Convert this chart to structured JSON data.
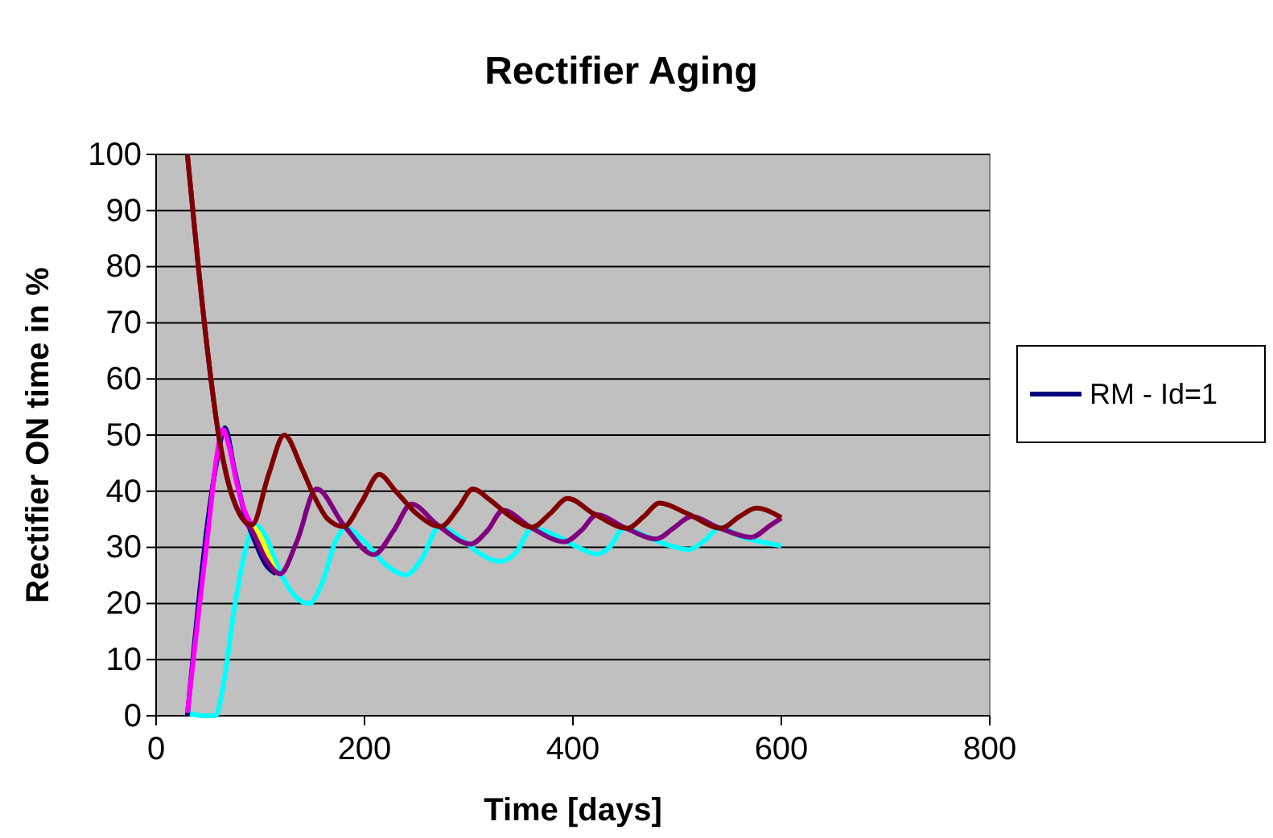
{
  "chart_data": {
    "type": "line",
    "title": "Rectifier Aging",
    "xlabel": "Time [days]",
    "ylabel": "Rectifier ON time in %",
    "xlim": [
      0,
      800
    ],
    "xticks": [
      0,
      200,
      400,
      600,
      800
    ],
    "ylim": [
      0,
      100
    ],
    "yticks": [
      0,
      10,
      20,
      30,
      40,
      50,
      60,
      70,
      80,
      90,
      100
    ],
    "grid": "y",
    "legend": "right",
    "line_style": "solid",
    "marker": "none",
    "series": [
      {
        "color": "#00ffff",
        "x": [
          30,
          45,
          57,
          65,
          75,
          85,
          95,
          105,
          118,
          135,
          147,
          160,
          172,
          182,
          200,
          220,
          240,
          255,
          272,
          290,
          310,
          330,
          345,
          361,
          385,
          405,
          423,
          435,
          449,
          470,
          490,
          511,
          525,
          542,
          560,
          580,
          600
        ],
        "values": [
          0.5,
          0,
          0,
          6,
          19,
          29,
          34,
          32,
          26,
          21,
          20,
          24,
          31,
          33.5,
          31,
          27,
          25.1,
          28,
          33.7,
          32,
          29,
          27.5,
          29,
          33.4,
          32,
          30,
          28.8,
          30,
          33.4,
          32,
          30.5,
          29.6,
          31,
          33.6,
          32,
          31,
          30.3
        ]
      },
      {
        "color": "#ffff00",
        "x": [
          92,
          100,
          108,
          114
        ],
        "values": [
          34,
          32,
          28.5,
          26
        ]
      },
      {
        "name": "RM - Id=1",
        "color": "#000080",
        "x": [
          30,
          58,
          66,
          75,
          85,
          95,
          105,
          115
        ],
        "values": [
          0,
          45,
          51.3,
          44,
          36,
          31,
          27,
          25.3
        ]
      },
      {
        "color": "#ff00ff",
        "x": [
          30,
          40,
          50,
          58,
          64,
          70,
          78,
          86,
          92
        ],
        "values": [
          0.5,
          17,
          33,
          46,
          51,
          48,
          41,
          36,
          34
        ]
      },
      {
        "color": "#800080",
        "x": [
          30,
          40,
          50,
          60,
          70,
          80,
          92,
          105,
          119,
          135,
          154,
          180,
          209,
          228,
          245,
          270,
          302,
          318,
          333,
          360,
          392,
          408,
          423,
          450,
          480,
          497,
          514,
          540,
          571,
          590,
          600
        ],
        "values": [
          100,
          81,
          64,
          50,
          41,
          36,
          33,
          28,
          25.3,
          31,
          40.4,
          34,
          28.7,
          33,
          37.7,
          34,
          30.6,
          33,
          36.6,
          33.5,
          31,
          33,
          35.8,
          33.5,
          31.5,
          33.5,
          35.5,
          33.5,
          31.8,
          34,
          35.2
        ]
      },
      {
        "color": "#800000",
        "x": [
          30,
          40,
          50,
          60,
          70,
          80,
          92,
          108,
          123,
          140,
          152,
          165,
          180,
          197,
          214,
          230,
          250,
          273,
          290,
          304,
          320,
          340,
          361,
          378,
          395,
          420,
          452,
          468,
          483,
          510,
          542,
          560,
          576,
          600
        ],
        "values": [
          100,
          81,
          64,
          50,
          41,
          36,
          34,
          43,
          50,
          44,
          39,
          35,
          33.7,
          38,
          43,
          40,
          36,
          33.7,
          37,
          40.4,
          38.5,
          35.5,
          33.6,
          36,
          38.7,
          36,
          33.4,
          35.5,
          37.9,
          36,
          33.4,
          35.5,
          37,
          35.3
        ]
      }
    ]
  }
}
